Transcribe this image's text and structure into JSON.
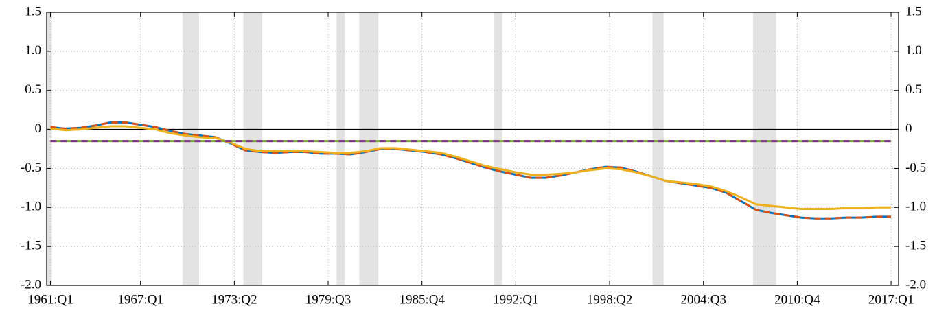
{
  "chart_data": {
    "type": "line",
    "x": [
      1961,
      1962,
      1963,
      1964,
      1965,
      1966,
      1967,
      1968,
      1969,
      1970,
      1971,
      1972,
      1973,
      1974,
      1975,
      1976,
      1977,
      1978,
      1979,
      1980,
      1981,
      1982,
      1983,
      1984,
      1985,
      1986,
      1987,
      1988,
      1989,
      1990,
      1991,
      1992,
      1993,
      1994,
      1995,
      1996,
      1997,
      1998,
      1999,
      2000,
      2001,
      2002,
      2003,
      2004,
      2005,
      2006,
      2007,
      2008,
      2009,
      2010,
      2011,
      2012,
      2013,
      2014,
      2015,
      2016,
      2017
    ],
    "series": [
      {
        "color": "#0072bd",
        "dash": false,
        "values": [
          0.03,
          0.01,
          0.02,
          0.05,
          0.09,
          0.09,
          0.06,
          0.03,
          -0.02,
          -0.06,
          -0.08,
          -0.1,
          -0.18,
          -0.27,
          -0.29,
          -0.3,
          -0.29,
          -0.29,
          -0.31,
          -0.31,
          -0.32,
          -0.29,
          -0.25,
          -0.25,
          -0.27,
          -0.29,
          -0.32,
          -0.37,
          -0.43,
          -0.49,
          -0.54,
          -0.58,
          -0.62,
          -0.62,
          -0.59,
          -0.55,
          -0.51,
          -0.48,
          -0.49,
          -0.54,
          -0.6,
          -0.66,
          -0.69,
          -0.72,
          -0.75,
          -0.81,
          -0.92,
          -1.03,
          -1.07,
          -1.1,
          -1.13,
          -1.14,
          -1.14,
          -1.13,
          -1.13,
          -1.12,
          -1.12
        ]
      },
      {
        "color": "#d95319",
        "dash": true,
        "values": [
          0.03,
          0.01,
          0.02,
          0.05,
          0.09,
          0.09,
          0.06,
          0.03,
          -0.02,
          -0.06,
          -0.08,
          -0.1,
          -0.18,
          -0.27,
          -0.29,
          -0.3,
          -0.29,
          -0.29,
          -0.31,
          -0.31,
          -0.32,
          -0.29,
          -0.25,
          -0.25,
          -0.27,
          -0.29,
          -0.32,
          -0.37,
          -0.43,
          -0.49,
          -0.54,
          -0.58,
          -0.62,
          -0.62,
          -0.59,
          -0.55,
          -0.51,
          -0.48,
          -0.49,
          -0.54,
          -0.6,
          -0.66,
          -0.69,
          -0.72,
          -0.75,
          -0.81,
          -0.92,
          -1.03,
          -1.07,
          -1.1,
          -1.13,
          -1.14,
          -1.14,
          -1.13,
          -1.13,
          -1.12,
          -1.12
        ]
      },
      {
        "color": "#edb120",
        "dash": false,
        "values": [
          0.01,
          -0.01,
          0.0,
          0.02,
          0.04,
          0.04,
          0.02,
          0.0,
          -0.05,
          -0.08,
          -0.1,
          -0.11,
          -0.17,
          -0.25,
          -0.28,
          -0.28,
          -0.28,
          -0.28,
          -0.29,
          -0.3,
          -0.3,
          -0.28,
          -0.24,
          -0.24,
          -0.26,
          -0.28,
          -0.3,
          -0.35,
          -0.41,
          -0.47,
          -0.51,
          -0.55,
          -0.58,
          -0.58,
          -0.57,
          -0.55,
          -0.52,
          -0.5,
          -0.51,
          -0.55,
          -0.6,
          -0.66,
          -0.68,
          -0.7,
          -0.73,
          -0.79,
          -0.87,
          -0.96,
          -0.98,
          -1.0,
          -1.02,
          -1.02,
          -1.02,
          -1.01,
          -1.01,
          -1.0,
          -1.0
        ]
      },
      {
        "color": "#77ac30",
        "dash": false,
        "x": [
          1961,
          2017
        ],
        "values": [
          -0.15,
          -0.15
        ]
      },
      {
        "color": "#7e2f8e",
        "dash": true,
        "x": [
          1961,
          2017
        ],
        "values": [
          -0.15,
          -0.15
        ]
      }
    ],
    "shaded_periods": [
      [
        1960.75,
        1961.1
      ],
      [
        1969.8,
        1970.9
      ],
      [
        1973.85,
        1975.1
      ],
      [
        1980.06,
        1980.6
      ],
      [
        1981.57,
        1982.85
      ],
      [
        1990.57,
        1991.1
      ],
      [
        2001.1,
        2001.85
      ],
      [
        2007.8,
        2009.35
      ]
    ],
    "shade_color": "#e3e3e3",
    "xlim": [
      1960.75,
      2017.5
    ],
    "xticks": [
      {
        "value": 1961,
        "label": "1961:Q1"
      },
      {
        "value": 1967,
        "label": "1967:Q1"
      },
      {
        "value": 1973.25,
        "label": "1973:Q2"
      },
      {
        "value": 1979.5,
        "label": "1979:Q3"
      },
      {
        "value": 1985.75,
        "label": "1985:Q4"
      },
      {
        "value": 1992,
        "label": "1992:Q1"
      },
      {
        "value": 1998.25,
        "label": "1998:Q2"
      },
      {
        "value": 2004.5,
        "label": "2004:Q3"
      },
      {
        "value": 2010.75,
        "label": "2010:Q4"
      },
      {
        "value": 2017,
        "label": "2017:Q1"
      }
    ],
    "ylim": [
      -2.0,
      1.5
    ],
    "yticks": [
      1.5,
      {
        "value": 1.0,
        "label": "1.0"
      },
      0.5,
      0,
      -0.5,
      {
        "value": -1.0,
        "label": "-1.0"
      },
      -1.5,
      {
        "value": -2.0,
        "label": "-2.0"
      }
    ],
    "grid": true
  }
}
